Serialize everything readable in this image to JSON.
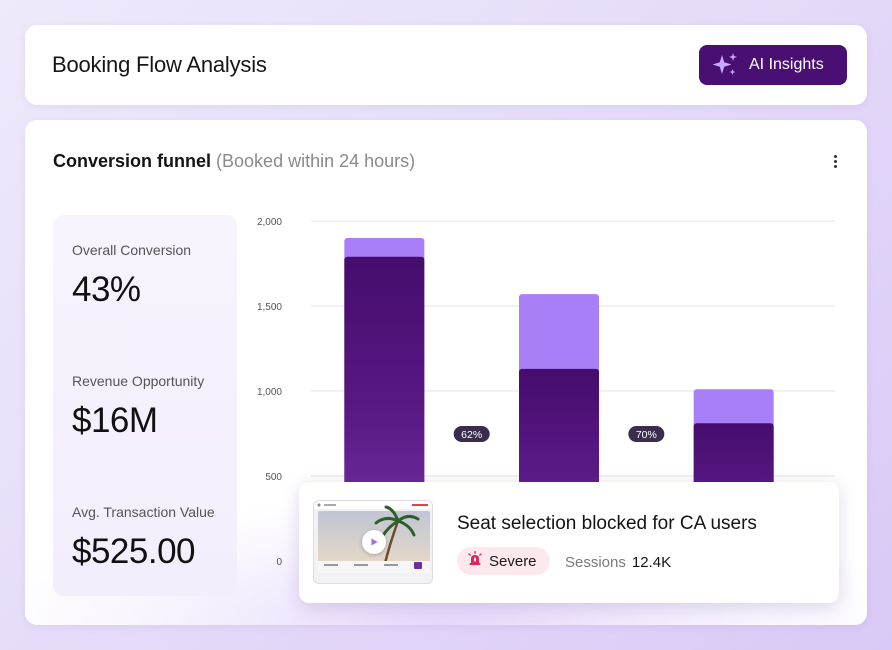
{
  "header": {
    "title": "Booking Flow Analysis",
    "ai_button_label": "AI Insights"
  },
  "funnel": {
    "title": "Conversion funnel",
    "subtitle": "(Booked within 24 hours)"
  },
  "metrics": [
    {
      "label": "Overall Conversion",
      "value": "43%"
    },
    {
      "label": "Revenue Opportunity",
      "value": "$16M"
    },
    {
      "label": "Avg. Transaction Value",
      "value": "$525.00"
    }
  ],
  "chart_data": {
    "type": "bar",
    "stacked": true,
    "categories": [
      "",
      "",
      ""
    ],
    "series": [
      {
        "values": [
          1790,
          1130,
          810
        ],
        "color": "#4a0f72"
      },
      {
        "values": [
          110,
          440,
          200
        ],
        "color": "#a97ff7"
      }
    ],
    "totals": [
      1900,
      1570,
      1010
    ],
    "yticks": [
      0,
      500,
      1000,
      1500,
      2000
    ],
    "ytick_labels": [
      "0",
      "500",
      "1,000",
      "1,500",
      "2,000"
    ],
    "ylim": [
      0,
      2000
    ],
    "step_labels": [
      "62%",
      "70%"
    ],
    "grid": true
  },
  "issue": {
    "title": "Seat selection blocked for CA users",
    "severity": "Severe",
    "sessions_label": "Sessions",
    "sessions_value": "12.4K",
    "thumbnail_text": "Find The Best Flight Deals",
    "colors": {
      "severity_bg": "#fde8ee",
      "severity_icon": "#e0245e"
    }
  },
  "colors": {
    "accent": "#4a0f72",
    "bar_dark": "#4a0f72",
    "bar_light": "#a97ff7"
  }
}
